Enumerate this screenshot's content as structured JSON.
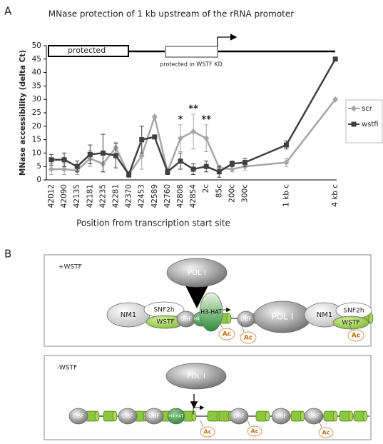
{
  "panel_labels": [
    "A",
    "B"
  ],
  "chart_data": {
    "type": "line",
    "title": "MNase protection of 1 kb upstream of the rRNA promoter",
    "x_label": "Position from transcription start site",
    "y_label": "MNase accessibility (delta Ct)",
    "categories": [
      "42012",
      "42090",
      "42135",
      "42181",
      "42235",
      "42281",
      "42370",
      "42453",
      "42589",
      "42760",
      "42808",
      "42854",
      "2c",
      "85c",
      "200c",
      "300c",
      "1 kb c",
      "4 kb c"
    ],
    "ylim": [
      0,
      50
    ],
    "yticks": [
      0,
      5,
      10,
      15,
      20,
      25,
      30,
      35,
      40,
      45,
      50
    ],
    "legend": "right",
    "series": [
      {
        "name": "scr",
        "color": "#a6a6a6",
        "marker": "diamond",
        "values": [
          4,
          4,
          3.5,
          8,
          6,
          12,
          2,
          9,
          23.5,
          3,
          15.5,
          18,
          15.5,
          4.5,
          4,
          5,
          6.5,
          30
        ],
        "errors": [
          2,
          2,
          1.5,
          3,
          3,
          2,
          0.5,
          5,
          0,
          1,
          5,
          6.5,
          5,
          1,
          1,
          1.5,
          1.5,
          0
        ]
      },
      {
        "name": "wstfi",
        "color": "#404040",
        "marker": "square",
        "values": [
          7.5,
          7.5,
          5,
          9.5,
          10,
          9,
          2,
          15,
          16,
          3,
          7,
          4,
          5,
          3,
          6,
          6.5,
          13,
          45
        ],
        "errors": [
          2,
          2.5,
          2,
          3.5,
          7,
          4.5,
          1,
          5,
          0,
          1,
          3,
          2,
          2,
          2,
          1,
          1.5,
          1.5,
          0
        ]
      }
    ],
    "annotations": [
      {
        "text": "*",
        "category": "42808"
      },
      {
        "text": "**",
        "category": "42854"
      },
      {
        "text": "**",
        "category": "2c"
      }
    ],
    "schematic": {
      "protected": "protected",
      "protected_kd": "protected in WSTF KD"
    }
  },
  "diagram": {
    "top": {
      "label": "+WSTF",
      "nodes": [
        "POL I",
        "NM1",
        "SNF2h",
        "WSTF",
        "UBF",
        "H4 HAT",
        "H3-HAT",
        "UBF",
        "POL I",
        "NM1",
        "SNF2h",
        "WSTF",
        "Ac",
        "Ac",
        "Ac"
      ]
    },
    "bottom": {
      "label": "-WSTF",
      "nodes": [
        "POL I",
        "UBF",
        "UBF",
        "UBF",
        "H4 HAT",
        "UBF",
        "UBF",
        "UBF",
        "Ac",
        "Ac",
        "Ac"
      ]
    }
  }
}
